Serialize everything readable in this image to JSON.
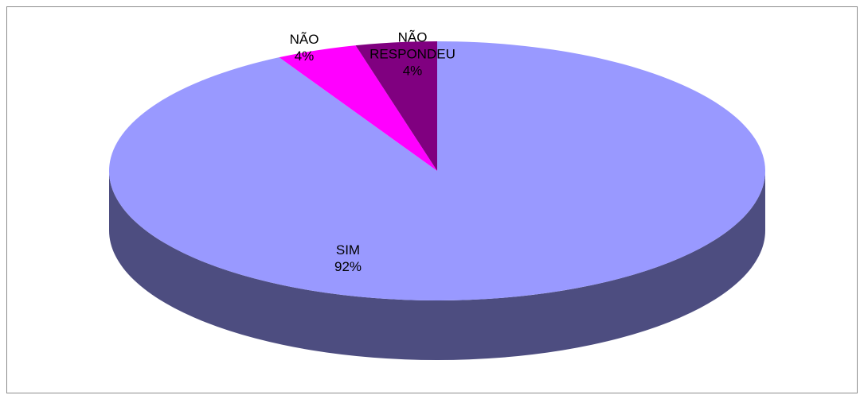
{
  "chart_data": {
    "type": "pie",
    "categories": [
      "SIM",
      "NÃO",
      "NÃO RESPONDEU"
    ],
    "values": [
      92,
      4,
      4
    ],
    "value_labels": [
      "92%",
      "4%",
      "4%"
    ],
    "colors": [
      "#9999ff",
      "#ff00ff",
      "#800080"
    ],
    "side_colors": [
      "#4d4d80",
      "#800080",
      "#400040"
    ]
  }
}
